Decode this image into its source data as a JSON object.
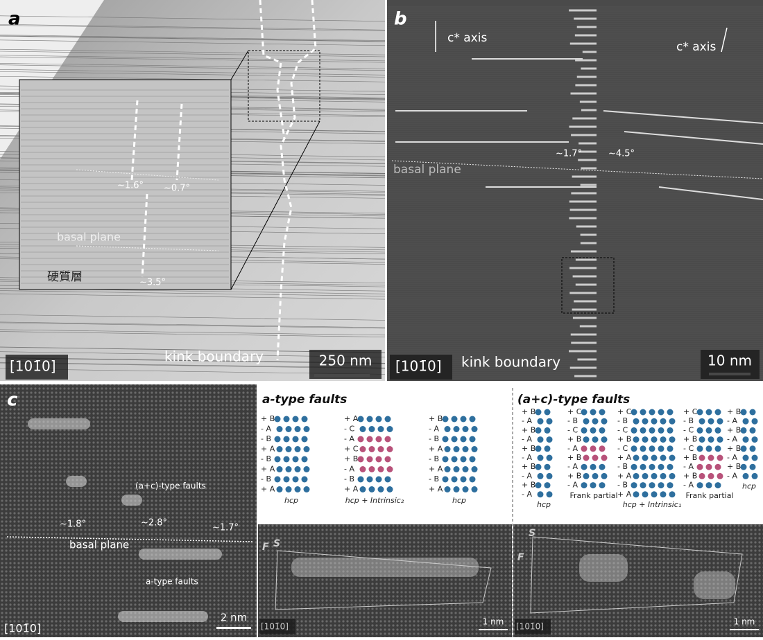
{
  "panels": {
    "a": {
      "label": "a",
      "orientation": "[101̄0]",
      "boundary": "kink boundary",
      "scale": "250 nm",
      "angles": [
        "~1.6°",
        "~0.7°",
        "~3.5°"
      ],
      "plane": "basal plane",
      "layer": "硬質層"
    },
    "b": {
      "label": "b",
      "orientation": "[101̄0]",
      "axis_left": "c* axis",
      "axis_right": "c* axis",
      "angles": [
        "~1.7°",
        "~4.5°"
      ],
      "plane": "basal plane",
      "boundary": "kink boundary",
      "scale": "10 nm"
    },
    "c": {
      "label": "c",
      "orientation": "[101̄0]",
      "ac_faults": "(a+c)-type faults",
      "a_faults": "a-type faults",
      "angles": [
        "~1.8°",
        "~2.8°",
        "~1.7°"
      ],
      "plane": "basal plane",
      "scale": "2 nm"
    },
    "d": {
      "title": "a-type faults",
      "structures": [
        {
          "caption": "hcp",
          "rows": [
            "+ B",
            "- A",
            "- B",
            "+ A",
            "- B",
            "+ A",
            "- B",
            "+ A"
          ]
        },
        {
          "caption": "hcp + Intrinsic₂",
          "rows": [
            "+ A",
            "- C",
            "- A",
            "+ C",
            "+ B",
            "- A",
            "- B",
            "+ A"
          ]
        },
        {
          "caption": "hcp",
          "rows": [
            "+ B",
            "- A",
            "- B",
            "+ A",
            "- B",
            "+ A",
            "- B",
            "+ A"
          ]
        }
      ],
      "s": "S",
      "f": "F",
      "scale": "1 nm",
      "orientation": "[101̄0]"
    },
    "e": {
      "title": "(a+c)-type faults",
      "structures": [
        {
          "caption": "hcp",
          "rows": [
            "+ B",
            "- A",
            "+ B",
            "- A",
            "+ B",
            "- A",
            "+ B",
            "- A",
            "+ B",
            "- A"
          ]
        },
        {
          "caption": "Frank partial",
          "rows": [
            "+ C",
            "- B",
            "- C",
            "+ B",
            "- A",
            "+ B",
            "- A",
            "+ B",
            "- A"
          ]
        },
        {
          "caption": "hcp + Intrinsic₁",
          "rows": [
            "+ C",
            "- B",
            "- C",
            "+ B",
            "- C",
            "+ A",
            "- B",
            "+ A",
            "- B",
            "+ A"
          ]
        },
        {
          "caption": "Frank partial",
          "rows": [
            "+ C",
            "- B",
            "- C",
            "+ B",
            "- C",
            "+ B",
            "- A",
            "+ B",
            "- A"
          ]
        },
        {
          "caption": "hcp",
          "rows": [
            "+ B",
            "- A",
            "+ B",
            "- A",
            "+ B",
            "- A",
            "+ B",
            "- A"
          ]
        }
      ],
      "s": "S",
      "f": "F",
      "scale": "1 nm",
      "orientation": "[101̄0]"
    }
  }
}
